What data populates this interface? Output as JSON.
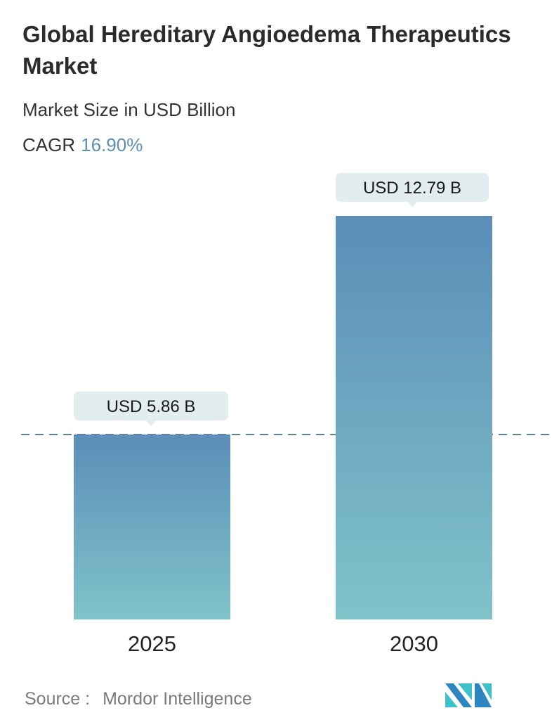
{
  "header": {
    "title": "Global Hereditary Angioedema Therapeutics Market",
    "subtitle": "Market Size in USD Billion",
    "cagr_label": "CAGR",
    "cagr_value": "16.90%"
  },
  "chart_data": {
    "type": "bar",
    "categories": [
      "2025",
      "2030"
    ],
    "values": [
      5.86,
      12.79
    ],
    "data_labels": [
      "USD 5.86 B",
      "USD 12.79 B"
    ],
    "unit": "USD Billion",
    "reference_line": 5.86,
    "grid": false,
    "colors": {
      "bar_top": "#5b8db8",
      "bar_bottom": "#80c3c9",
      "label_bg": "#e3ecef",
      "dash": "#5a7fa0"
    }
  },
  "footer": {
    "source_label": "Source :",
    "source_value": "Mordor Intelligence",
    "logo_text": "MI"
  }
}
